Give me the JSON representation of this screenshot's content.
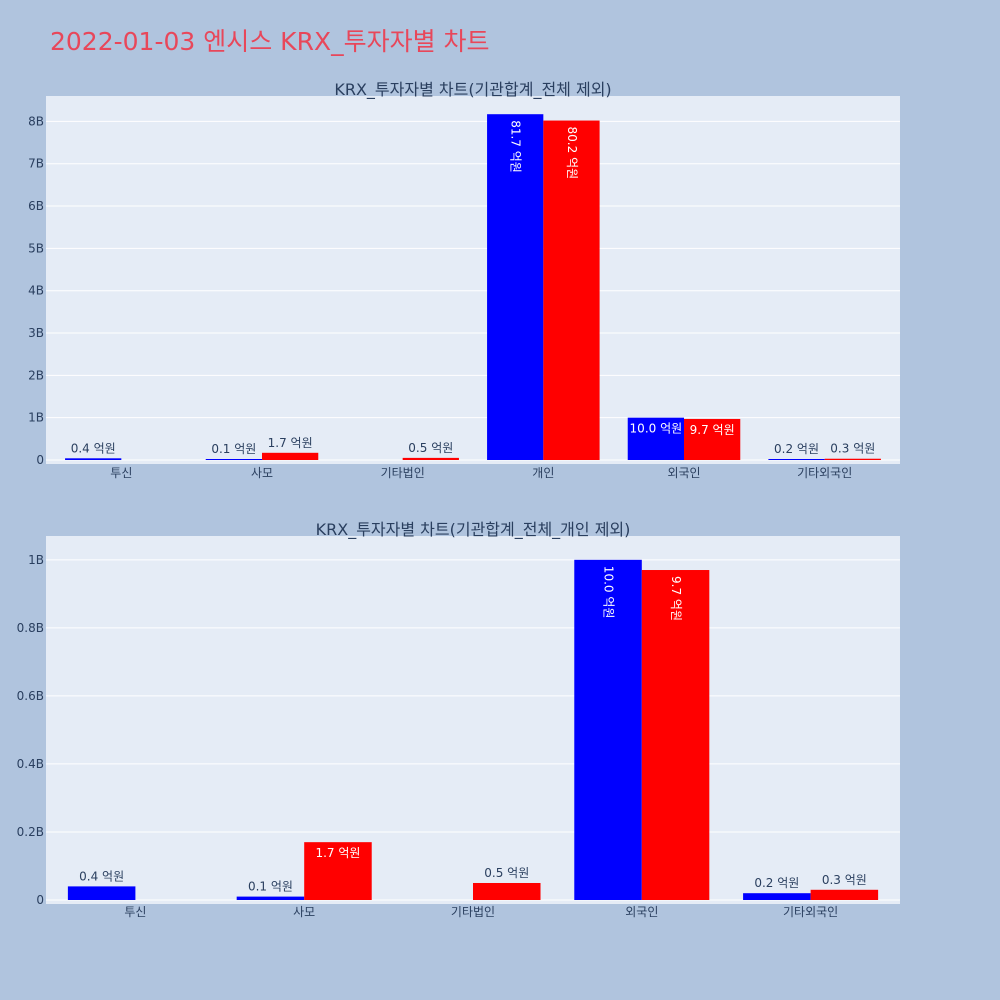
{
  "page_title": "2022-01-03 엔시스 KRX_투자자별 차트",
  "colors": {
    "series_a": "#0000ff",
    "series_b": "#ff0000",
    "plot_bg": "#e5ecf6",
    "page_bg": "#b0c4de",
    "title": "#e8475a"
  },
  "chart_data": [
    {
      "type": "bar",
      "title": "KRX_투자자별 차트(기관합계_전체 제외)",
      "categories": [
        "투신",
        "사모",
        "기타법인",
        "개인",
        "외국인",
        "기타외국인"
      ],
      "series": [
        {
          "values": [
            0.04,
            0.01,
            null,
            8.17,
            1.0,
            0.02
          ],
          "labels": [
            "0.4 억원",
            "0.1 억원",
            null,
            "81.7 억원",
            "10.0 억원",
            "0.2 억원"
          ]
        },
        {
          "values": [
            null,
            0.17,
            0.05,
            8.02,
            0.97,
            0.03
          ],
          "labels": [
            null,
            "1.7 억원",
            "0.5 억원",
            "80.2 억원",
            "9.7 억원",
            "0.3 억원"
          ]
        }
      ],
      "yticks": [
        0,
        1,
        2,
        3,
        4,
        5,
        6,
        7,
        8
      ],
      "ytick_labels": [
        "0",
        "1B",
        "2B",
        "3B",
        "4B",
        "5B",
        "6B",
        "7B",
        "8B"
      ],
      "ylim": [
        0,
        8.6
      ],
      "xlabel": "",
      "ylabel": "",
      "grid": true,
      "legend": false
    },
    {
      "type": "bar",
      "title": "KRX_투자자별 차트(기관합계_전체_개인 제외)",
      "categories": [
        "투신",
        "사모",
        "기타법인",
        "외국인",
        "기타외국인"
      ],
      "series": [
        {
          "values": [
            0.04,
            0.01,
            null,
            1.0,
            0.02
          ],
          "labels": [
            "0.4 억원",
            "0.1 억원",
            null,
            "10.0 억원",
            "0.2 억원"
          ]
        },
        {
          "values": [
            null,
            0.17,
            0.05,
            0.97,
            0.03
          ],
          "labels": [
            null,
            "1.7 억원",
            "0.5 억원",
            "9.7 억원",
            "0.3 억원"
          ]
        }
      ],
      "yticks": [
        0,
        0.2,
        0.4,
        0.6,
        0.8,
        1
      ],
      "ytick_labels": [
        "0",
        "0.2B",
        "0.4B",
        "0.6B",
        "0.8B",
        "1B"
      ],
      "ylim": [
        0,
        1.07
      ],
      "xlabel": "",
      "ylabel": "",
      "grid": true,
      "legend": false
    }
  ]
}
